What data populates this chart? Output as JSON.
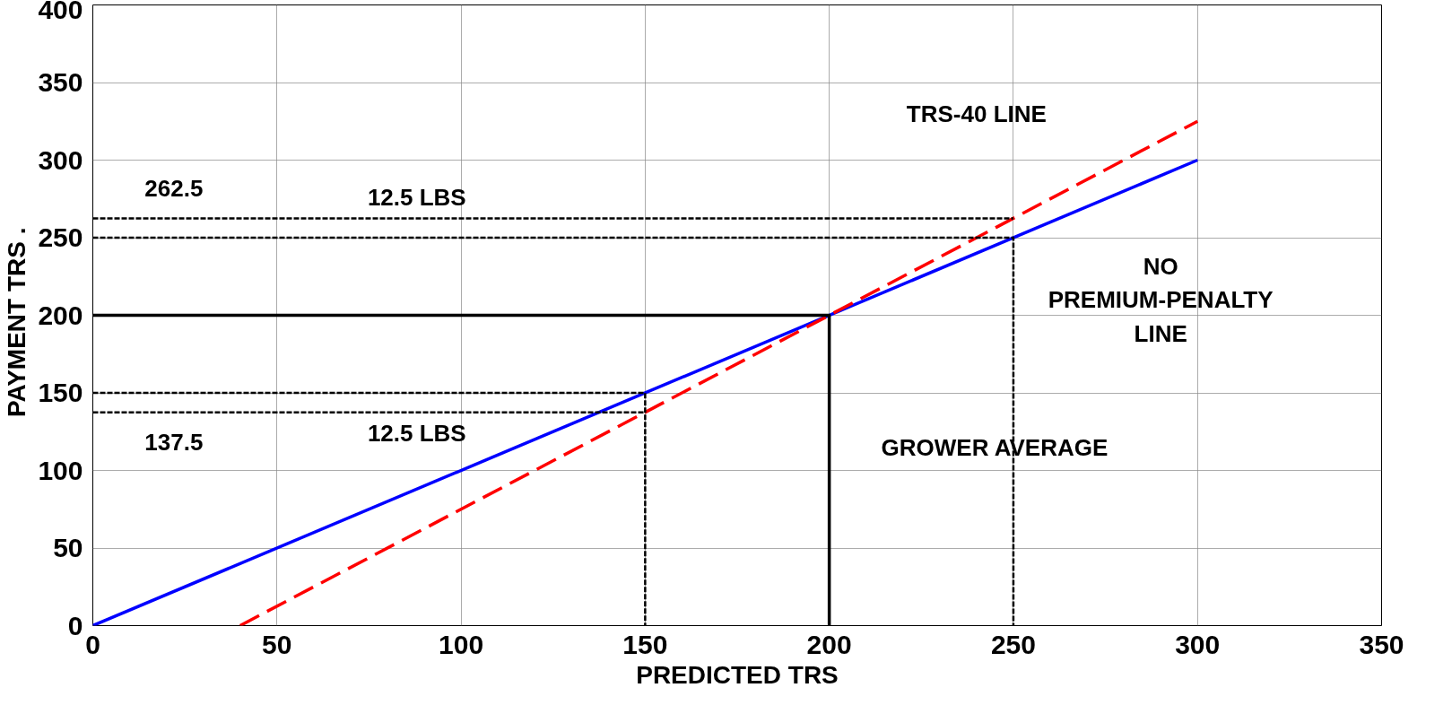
{
  "chart_data": {
    "type": "line",
    "xlabel": "PREDICTED TRS",
    "ylabel": "PAYMENT TRS   .",
    "xlim": [
      0,
      350
    ],
    "ylim": [
      0,
      400
    ],
    "xticks": [
      0,
      50,
      100,
      150,
      200,
      250,
      300,
      350
    ],
    "yticks": [
      0,
      50,
      100,
      150,
      200,
      250,
      300,
      350,
      400
    ],
    "grid": true,
    "marker": "none",
    "series": [
      {
        "color": "#0000ff",
        "x": [
          0,
          300
        ],
        "values": [
          0,
          300
        ],
        "line_style": "solid"
      },
      {
        "color": "#ff0000",
        "x": [
          40,
          300
        ],
        "values": [
          0,
          325
        ],
        "line_style": "dashed"
      },
      {
        "color": "#000000",
        "x": [
          0,
          200,
          200
        ],
        "values": [
          200,
          200,
          0
        ],
        "line_style": "solid"
      },
      {
        "color": "#000000",
        "x": [
          0,
          250
        ],
        "values": [
          262.5,
          262.5
        ],
        "line_style": "dotted"
      },
      {
        "color": "#000000",
        "x": [
          0,
          250,
          250
        ],
        "values": [
          250,
          250,
          0
        ],
        "line_style": "dotted"
      },
      {
        "color": "#000000",
        "x": [
          0,
          150,
          150
        ],
        "values": [
          150,
          150,
          0
        ],
        "line_style": "dotted"
      },
      {
        "color": "#000000",
        "x": [
          0,
          150
        ],
        "values": [
          137.5,
          137.5
        ],
        "line_style": "dotted"
      }
    ],
    "annotations": [
      "262.5",
      "12.5 LBS",
      "137.5",
      "12.5 LBS",
      "TRS-40 LINE",
      "NO\nPREMIUM-PENALTY\nLINE",
      "GROWER AVERAGE"
    ]
  }
}
